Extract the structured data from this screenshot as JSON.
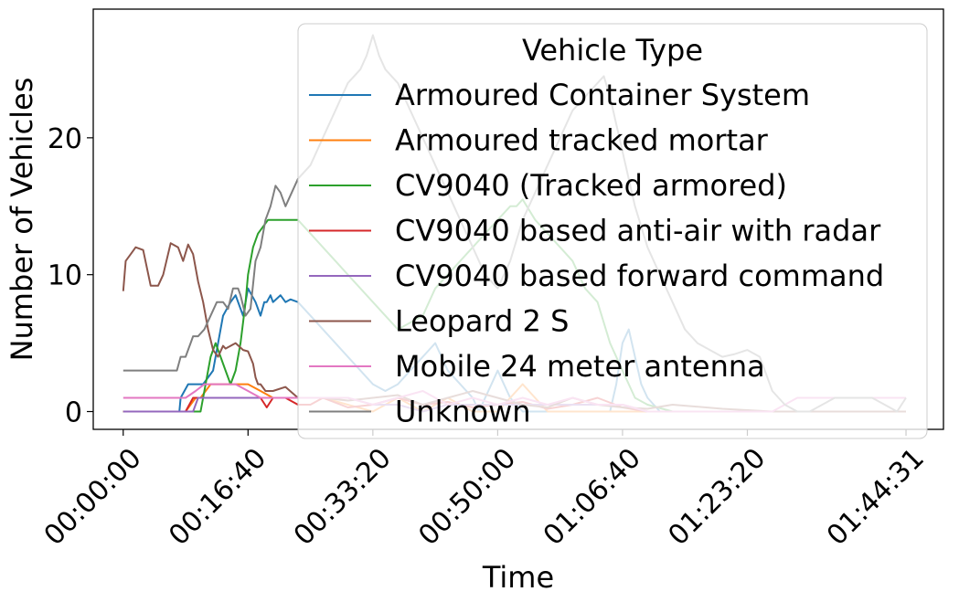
{
  "chart_data": {
    "type": "line",
    "xlabel": "Time",
    "ylabel": "Number of Vehicles",
    "x_unit": "seconds",
    "xlim": [
      -240,
      6571
    ],
    "ylim": [
      -1.3,
      29.4
    ],
    "x_ticks": [
      {
        "value": 0,
        "label": "00:00:00"
      },
      {
        "value": 1000,
        "label": "00:16:40"
      },
      {
        "value": 2000,
        "label": "00:33:20"
      },
      {
        "value": 3000,
        "label": "00:50:00"
      },
      {
        "value": 4000,
        "label": "01:06:40"
      },
      {
        "value": 5000,
        "label": "01:23:20"
      },
      {
        "value": 6271,
        "label": "01:44:31"
      }
    ],
    "y_ticks": [
      0,
      10,
      20
    ],
    "grid": false,
    "legend": {
      "title": "Vehicle Type",
      "placement": "upper right"
    },
    "series": [
      {
        "name": "Armoured Container System",
        "color": "#1f77b4",
        "x": [
          0,
          450,
          460,
          520,
          640,
          720,
          800,
          860,
          900,
          960,
          1000,
          1060,
          1100,
          1130,
          1150,
          1180,
          1200,
          1260,
          1300,
          1340,
          1400,
          1500,
          1600,
          1700,
          1800,
          1900,
          2000,
          2100,
          2200,
          2300,
          2400,
          2500,
          2600,
          2700,
          2800,
          2850,
          2900,
          2950,
          3000,
          3050,
          3100,
          3150,
          3200,
          3300,
          3400,
          3500,
          3600,
          3700,
          3800,
          3900,
          3950,
          4000,
          4050,
          4100,
          4150,
          4200,
          4250,
          4300,
          4400,
          4500,
          4600,
          4700,
          4800,
          4900,
          5000,
          5200,
          5400,
          5600,
          5800,
          6000,
          6100,
          6200,
          6271
        ],
        "y": [
          0,
          0,
          1,
          2,
          2,
          3,
          7,
          8,
          8.5,
          7,
          9,
          8,
          7,
          8,
          8,
          8.5,
          8,
          8.5,
          8,
          8.2,
          8,
          7,
          6,
          5,
          4,
          3,
          2,
          1.5,
          2,
          3,
          4,
          5,
          3,
          2,
          1,
          0,
          1,
          2,
          3,
          2,
          1,
          0.5,
          0,
          0,
          0,
          0,
          0,
          0,
          0,
          0,
          2,
          5,
          6,
          4,
          2,
          1,
          0.5,
          0,
          0,
          0,
          0,
          0,
          0,
          0,
          0,
          0,
          0,
          0,
          0,
          0,
          0,
          0,
          0
        ]
      },
      {
        "name": "Armoured tracked mortar",
        "color": "#ff7f0e",
        "x": [
          0,
          500,
          580,
          620,
          700,
          800,
          900,
          1000,
          1100,
          1200,
          1300,
          1400,
          1500,
          1600,
          1800,
          2000,
          2200,
          2400,
          2600,
          2800,
          3000,
          3200,
          3400,
          3600,
          4000,
          4400,
          4800,
          5200,
          5600,
          6000,
          6271
        ],
        "y": [
          0,
          0,
          1,
          1,
          2,
          2,
          2,
          2,
          1.5,
          1,
          1,
          1,
          1,
          1,
          0.5,
          0,
          1,
          0,
          1,
          0,
          0,
          2,
          0,
          0,
          0,
          0,
          0,
          0,
          0,
          0,
          0
        ]
      },
      {
        "name": "CV9040 (Tracked armored)",
        "color": "#2ca02c",
        "x": [
          0,
          620,
          660,
          700,
          740,
          780,
          820,
          860,
          900,
          940,
          980,
          1000,
          1040,
          1080,
          1120,
          1160,
          1200,
          1240,
          1280,
          1320,
          1400,
          1500,
          1600,
          1700,
          1800,
          1900,
          2000,
          2100,
          2200,
          2300,
          2400,
          2500,
          2600,
          2700,
          2800,
          2900,
          3000,
          3100,
          3150,
          3200,
          3300,
          3400,
          3500,
          3600,
          3700,
          3800,
          3900,
          4000,
          4100,
          4200,
          4400,
          4600,
          4800,
          5000,
          5400,
          6000,
          6271
        ],
        "y": [
          0,
          0,
          2,
          4,
          5,
          4,
          3,
          2,
          3,
          5,
          8,
          10,
          12,
          13,
          13.5,
          14,
          14,
          14,
          14,
          14,
          14,
          13,
          12,
          11,
          10,
          9,
          8,
          7,
          6,
          6.5,
          7,
          9,
          10,
          11,
          12,
          13,
          14,
          15,
          15,
          15.5,
          14,
          13,
          12,
          11,
          9,
          8,
          5,
          3,
          1,
          0.5,
          0,
          0,
          0,
          0,
          0,
          0,
          0
        ]
      },
      {
        "name": "CV9040 based anti-air with radar",
        "color": "#d62728",
        "x": [
          0,
          500,
          560,
          620,
          700,
          800,
          900,
          1000,
          1100,
          1150,
          1200,
          1300,
          1400,
          1500,
          1600,
          1800,
          2000,
          2200,
          2400,
          2600,
          2800,
          3000,
          3200,
          3400,
          3600,
          3800,
          4000,
          4200,
          4400,
          4600,
          4800,
          5000,
          6271
        ],
        "y": [
          0,
          0,
          1,
          1,
          1,
          1,
          1,
          1,
          1,
          0.3,
          1,
          1,
          0.5,
          0.5,
          1,
          0.3,
          0.5,
          1,
          0.5,
          0.7,
          0.3,
          0.5,
          0.7,
          0.2,
          0.5,
          1,
          0.3,
          0,
          0,
          0,
          0,
          0,
          0
        ]
      },
      {
        "name": "CV9040 based forward command",
        "color": "#9467bd",
        "x": [
          0,
          500,
          560,
          600,
          700,
          800,
          900,
          1000,
          1100,
          1200,
          1300,
          1400,
          1600,
          1800,
          2000,
          2200,
          2400,
          2600,
          2800,
          3000,
          3200,
          3400,
          3600,
          3800,
          4000,
          4200,
          4600,
          5000,
          5400,
          5800,
          6271
        ],
        "y": [
          0,
          0,
          0,
          1,
          1,
          1,
          1,
          1,
          1,
          1,
          1,
          1,
          1,
          1,
          0.5,
          0.5,
          0,
          0.5,
          0.5,
          0.5,
          0.5,
          0.5,
          0.5,
          0.5,
          0.5,
          0,
          0,
          0,
          0,
          0,
          0
        ]
      },
      {
        "name": "Leopard 2 S",
        "color": "#8c564b",
        "x": [
          0,
          20,
          60,
          100,
          160,
          220,
          280,
          320,
          380,
          440,
          480,
          520,
          560,
          600,
          640,
          680,
          720,
          760,
          800,
          820,
          860,
          900,
          960,
          1000,
          1040,
          1060,
          1080,
          1100,
          1140,
          1200,
          1300,
          1400,
          1600,
          1800,
          2000,
          2200,
          2400,
          2600,
          2800,
          3000,
          3200,
          3400,
          3600,
          3800,
          4000,
          4200,
          4400,
          4800,
          5200,
          5600,
          6271
        ],
        "y": [
          8.8,
          11,
          11.5,
          12,
          11.8,
          9.2,
          9.2,
          10,
          12.3,
          12,
          11,
          12.2,
          11.5,
          9.5,
          8,
          6,
          4.5,
          4,
          4.8,
          4.6,
          4.8,
          5,
          4.5,
          4.4,
          3.5,
          2.5,
          2,
          2,
          1.5,
          1.5,
          1.8,
          1,
          1,
          0.8,
          1,
          1.2,
          0.5,
          1,
          1.5,
          1,
          0.5,
          0.3,
          1,
          0.5,
          0.3,
          0.2,
          0.5,
          0.2,
          0,
          0,
          0
        ]
      },
      {
        "name": "Mobile 24 meter antenna",
        "color": "#e377c2",
        "x": [
          0,
          500,
          580,
          650,
          700,
          800,
          900,
          1000,
          1100,
          1200,
          1300,
          1400,
          1600,
          1800,
          2000,
          2200,
          2400,
          2600,
          2800,
          3000,
          3200,
          3400,
          3600,
          3800,
          4000,
          4200,
          4400,
          4800,
          5200,
          5400,
          5600,
          5800,
          6000,
          6271
        ],
        "y": [
          1,
          1,
          1.5,
          2,
          2,
          2,
          2,
          1.5,
          1,
          1,
          1,
          1,
          1,
          1,
          0.5,
          1,
          1.5,
          0.5,
          1,
          0.5,
          1,
          0.5,
          1,
          0.5,
          0.5,
          0,
          0,
          0,
          0,
          1,
          1,
          1,
          1,
          1
        ]
      },
      {
        "name": "Unknown",
        "color": "#7f7f7f",
        "x": [
          0,
          20,
          60,
          100,
          200,
          300,
          430,
          460,
          500,
          540,
          560,
          600,
          650,
          700,
          750,
          800,
          840,
          880,
          920,
          940,
          980,
          1020,
          1060,
          1100,
          1140,
          1180,
          1220,
          1260,
          1300,
          1400,
          1500,
          1600,
          1700,
          1800,
          1900,
          1950,
          2000,
          2050,
          2100,
          2200,
          2300,
          2400,
          2500,
          2600,
          2700,
          2800,
          2900,
          3000,
          3100,
          3200,
          3300,
          3400,
          3500,
          3600,
          3700,
          3800,
          3850,
          3900,
          3950,
          4000,
          4100,
          4200,
          4300,
          4400,
          4500,
          4600,
          4700,
          4800,
          4900,
          5000,
          5100,
          5200,
          5300,
          5400,
          5500,
          5600,
          5700,
          5800,
          5900,
          6000,
          6100,
          6200,
          6271
        ],
        "y": [
          3,
          3,
          3,
          3,
          3,
          3,
          3,
          4,
          4,
          5,
          5.5,
          5.5,
          6,
          7,
          8,
          8,
          7.5,
          9,
          9,
          8.5,
          7,
          7.5,
          11,
          12,
          14,
          15,
          16.5,
          16,
          15,
          17,
          18,
          20,
          22,
          24,
          25,
          26,
          27.5,
          26,
          25,
          24,
          22,
          20,
          18,
          16,
          14,
          12,
          10,
          9,
          11,
          14,
          16,
          18,
          20,
          22,
          23,
          24,
          24.5,
          23,
          21,
          19,
          15,
          12,
          10,
          8,
          6,
          5,
          4.5,
          4,
          4.2,
          4.5,
          4,
          1.5,
          0.5,
          0,
          0,
          0.5,
          1,
          1,
          1,
          1,
          0.5,
          0,
          1
        ]
      }
    ]
  }
}
